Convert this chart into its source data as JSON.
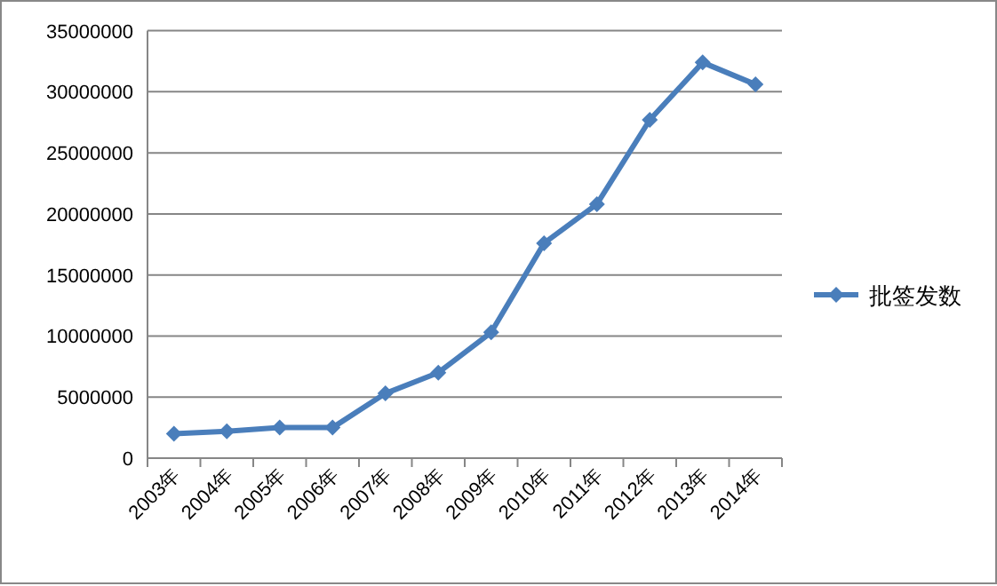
{
  "chart_data": {
    "type": "line",
    "categories": [
      "2003年",
      "2004年",
      "2005年",
      "2006年",
      "2007年",
      "2008年",
      "2009年",
      "2010年",
      "2011年",
      "2012年",
      "2013年",
      "2014年"
    ],
    "series": [
      {
        "name": "批签发数",
        "color": "#4a7ebb",
        "values": [
          2000000,
          2200000,
          2500000,
          2500000,
          5300000,
          7000000,
          10300000,
          17600000,
          20800000,
          27700000,
          32400000,
          30600000
        ]
      }
    ],
    "ylim": [
      0,
      35000000
    ],
    "yticks": [
      0,
      5000000,
      10000000,
      15000000,
      20000000,
      25000000,
      30000000,
      35000000
    ],
    "grid": "y",
    "legend": "right",
    "marker": "diamond",
    "line_style": "solid"
  }
}
